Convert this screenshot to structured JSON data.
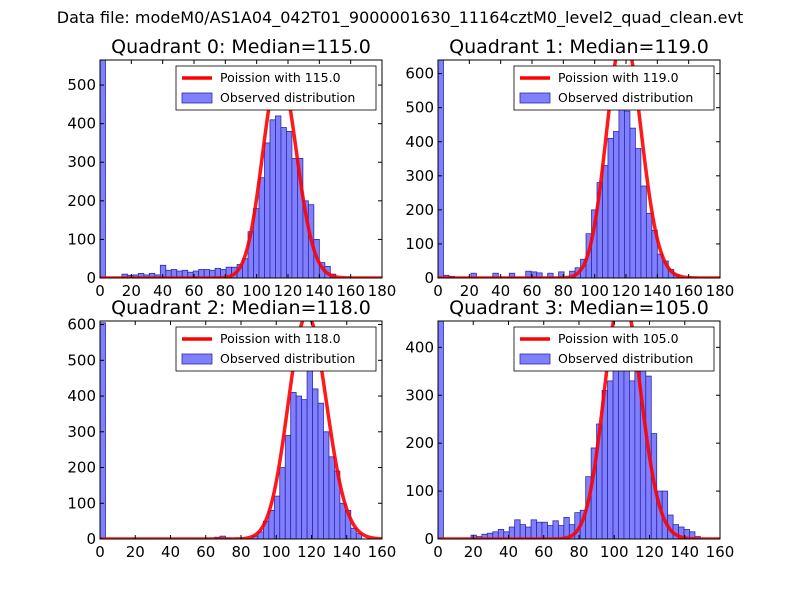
{
  "suptitle": "Data file: modeM0/AS1A04_042T01_9000001630_11164cztM0_level2_quad_clean.evt",
  "colors": {
    "bar_fill": "#8080ff",
    "bar_edge": "#2a2aa8",
    "curve": "#ff0000",
    "curve_hilite": "#f08c8c"
  },
  "chart_data": [
    {
      "type": "bar",
      "title": "Quadrant 0: Median=115.0",
      "median": 115.0,
      "legend": [
        "Poission with 115.0",
        "Observed distribution"
      ],
      "legend_position": "upper-right",
      "xlim": [
        0,
        180
      ],
      "ylim": [
        0,
        565
      ],
      "xticks": [
        0,
        20,
        40,
        60,
        80,
        100,
        120,
        140,
        160,
        180
      ],
      "yticks": [
        0,
        100,
        200,
        300,
        400,
        500
      ],
      "bins": [
        {
          "x0": 0,
          "x1": 3.5,
          "v": 565
        },
        {
          "x0": 14,
          "x1": 17.5,
          "v": 10
        },
        {
          "x0": 17.5,
          "x1": 21,
          "v": 7
        },
        {
          "x0": 21,
          "x1": 24.5,
          "v": 8
        },
        {
          "x0": 24.5,
          "x1": 28,
          "v": 12
        },
        {
          "x0": 28,
          "x1": 31.5,
          "v": 8
        },
        {
          "x0": 31.5,
          "x1": 35,
          "v": 12
        },
        {
          "x0": 35,
          "x1": 38.5,
          "v": 8
        },
        {
          "x0": 38.5,
          "x1": 42,
          "v": 33
        },
        {
          "x0": 42,
          "x1": 45.5,
          "v": 20
        },
        {
          "x0": 45.5,
          "x1": 49,
          "v": 22
        },
        {
          "x0": 49,
          "x1": 52.5,
          "v": 18
        },
        {
          "x0": 52.5,
          "x1": 56,
          "v": 20
        },
        {
          "x0": 56,
          "x1": 59.5,
          "v": 15
        },
        {
          "x0": 59.5,
          "x1": 63,
          "v": 18
        },
        {
          "x0": 63,
          "x1": 66.5,
          "v": 22
        },
        {
          "x0": 66.5,
          "x1": 70,
          "v": 22
        },
        {
          "x0": 70,
          "x1": 73.5,
          "v": 20
        },
        {
          "x0": 73.5,
          "x1": 77,
          "v": 25
        },
        {
          "x0": 77,
          "x1": 80.5,
          "v": 22
        },
        {
          "x0": 80.5,
          "x1": 84,
          "v": 28
        },
        {
          "x0": 84,
          "x1": 87.5,
          "v": 28
        },
        {
          "x0": 87.5,
          "x1": 91,
          "v": 35
        },
        {
          "x0": 91,
          "x1": 94.5,
          "v": 50
        },
        {
          "x0": 94.5,
          "x1": 98,
          "v": 120
        },
        {
          "x0": 98,
          "x1": 101.5,
          "v": 180
        },
        {
          "x0": 101.5,
          "x1": 105,
          "v": 260
        },
        {
          "x0": 105,
          "x1": 108.5,
          "v": 350
        },
        {
          "x0": 108.5,
          "x1": 112,
          "v": 410
        },
        {
          "x0": 112,
          "x1": 115.5,
          "v": 420
        },
        {
          "x0": 115.5,
          "x1": 119,
          "v": 390
        },
        {
          "x0": 119,
          "x1": 122.5,
          "v": 380
        },
        {
          "x0": 122.5,
          "x1": 126,
          "v": 310
        },
        {
          "x0": 126,
          "x1": 129.5,
          "v": 310
        },
        {
          "x0": 129.5,
          "x1": 133,
          "v": 200
        },
        {
          "x0": 133,
          "x1": 136.5,
          "v": 190
        },
        {
          "x0": 136.5,
          "x1": 140,
          "v": 100
        },
        {
          "x0": 140,
          "x1": 143.5,
          "v": 40
        },
        {
          "x0": 143.5,
          "x1": 147,
          "v": 30
        },
        {
          "x0": 147,
          "x1": 150.5,
          "v": 10
        }
      ]
    },
    {
      "type": "bar",
      "title": "Quadrant 1: Median=119.0",
      "median": 119.0,
      "legend": [
        "Poission with 119.0",
        "Observed distribution"
      ],
      "legend_position": "upper-right",
      "xlim": [
        0,
        180
      ],
      "ylim": [
        0,
        640
      ],
      "xticks": [
        0,
        20,
        40,
        60,
        80,
        100,
        120,
        140,
        160,
        180
      ],
      "yticks": [
        0,
        100,
        200,
        300,
        400,
        500,
        600
      ],
      "bins": [
        {
          "x0": 0,
          "x1": 3.5,
          "v": 640
        },
        {
          "x0": 3.5,
          "x1": 7,
          "v": 8
        },
        {
          "x0": 7,
          "x1": 10.5,
          "v": 5
        },
        {
          "x0": 21,
          "x1": 24.5,
          "v": 14
        },
        {
          "x0": 35,
          "x1": 38.5,
          "v": 14
        },
        {
          "x0": 45.5,
          "x1": 49,
          "v": 14
        },
        {
          "x0": 56,
          "x1": 59.5,
          "v": 20
        },
        {
          "x0": 59.5,
          "x1": 63,
          "v": 18
        },
        {
          "x0": 63,
          "x1": 66.5,
          "v": 15
        },
        {
          "x0": 70,
          "x1": 73.5,
          "v": 14
        },
        {
          "x0": 77,
          "x1": 80.5,
          "v": 18
        },
        {
          "x0": 84,
          "x1": 87.5,
          "v": 20
        },
        {
          "x0": 87.5,
          "x1": 91,
          "v": 30
        },
        {
          "x0": 91,
          "x1": 94.5,
          "v": 55
        },
        {
          "x0": 94.5,
          "x1": 98,
          "v": 130
        },
        {
          "x0": 98,
          "x1": 101.5,
          "v": 200
        },
        {
          "x0": 101.5,
          "x1": 105,
          "v": 280
        },
        {
          "x0": 105,
          "x1": 108.5,
          "v": 330
        },
        {
          "x0": 108.5,
          "x1": 112,
          "v": 410
        },
        {
          "x0": 112,
          "x1": 115.5,
          "v": 430
        },
        {
          "x0": 115.5,
          "x1": 119,
          "v": 560
        },
        {
          "x0": 119,
          "x1": 122.5,
          "v": 490
        },
        {
          "x0": 122.5,
          "x1": 126,
          "v": 440
        },
        {
          "x0": 126,
          "x1": 129.5,
          "v": 380
        },
        {
          "x0": 129.5,
          "x1": 133,
          "v": 270
        },
        {
          "x0": 133,
          "x1": 136.5,
          "v": 190
        },
        {
          "x0": 136.5,
          "x1": 140,
          "v": 140
        },
        {
          "x0": 140,
          "x1": 143.5,
          "v": 70
        },
        {
          "x0": 143.5,
          "x1": 147,
          "v": 50
        },
        {
          "x0": 147,
          "x1": 150.5,
          "v": 25
        },
        {
          "x0": 150.5,
          "x1": 154,
          "v": 10
        }
      ]
    },
    {
      "type": "bar",
      "title": "Quadrant 2: Median=118.0",
      "median": 118.0,
      "legend": [
        "Poission with 118.0",
        "Observed distribution"
      ],
      "legend_position": "upper-right",
      "xlim": [
        0,
        160
      ],
      "ylim": [
        0,
        610
      ],
      "xticks": [
        0,
        20,
        40,
        60,
        80,
        100,
        120,
        140,
        160
      ],
      "yticks": [
        0,
        100,
        200,
        300,
        400,
        500,
        600
      ],
      "bins": [
        {
          "x0": 0,
          "x1": 3.1,
          "v": 605
        },
        {
          "x0": 65,
          "x1": 68.1,
          "v": 5
        },
        {
          "x0": 68.1,
          "x1": 71.2,
          "v": 8
        },
        {
          "x0": 71.2,
          "x1": 74.3,
          "v": 3
        },
        {
          "x0": 86.5,
          "x1": 89.6,
          "v": 8
        },
        {
          "x0": 89.6,
          "x1": 92.7,
          "v": 20
        },
        {
          "x0": 92.7,
          "x1": 95.8,
          "v": 50
        },
        {
          "x0": 95.8,
          "x1": 98.9,
          "v": 80
        },
        {
          "x0": 98.9,
          "x1": 102,
          "v": 120
        },
        {
          "x0": 102,
          "x1": 105.1,
          "v": 200
        },
        {
          "x0": 105.1,
          "x1": 108.2,
          "v": 290
        },
        {
          "x0": 108.2,
          "x1": 111.3,
          "v": 410
        },
        {
          "x0": 111.3,
          "x1": 114.4,
          "v": 400
        },
        {
          "x0": 114.4,
          "x1": 117.5,
          "v": 390
        },
        {
          "x0": 117.5,
          "x1": 120.6,
          "v": 490
        },
        {
          "x0": 120.6,
          "x1": 123.7,
          "v": 420
        },
        {
          "x0": 123.7,
          "x1": 126.8,
          "v": 380
        },
        {
          "x0": 126.8,
          "x1": 129.9,
          "v": 300
        },
        {
          "x0": 129.9,
          "x1": 133,
          "v": 230
        },
        {
          "x0": 133,
          "x1": 136.1,
          "v": 190
        },
        {
          "x0": 136.1,
          "x1": 139.2,
          "v": 100
        },
        {
          "x0": 139.2,
          "x1": 142.3,
          "v": 80
        },
        {
          "x0": 142.3,
          "x1": 145.4,
          "v": 30
        },
        {
          "x0": 145.4,
          "x1": 148.5,
          "v": 15
        }
      ]
    },
    {
      "type": "bar",
      "title": "Quadrant 3: Median=105.0",
      "median": 105.0,
      "legend": [
        "Poission with 105.0",
        "Observed distribution"
      ],
      "legend_position": "upper-right",
      "xlim": [
        0,
        160
      ],
      "ylim": [
        0,
        455
      ],
      "xticks": [
        0,
        20,
        40,
        60,
        80,
        100,
        120,
        140,
        160
      ],
      "yticks": [
        0,
        100,
        200,
        300,
        400
      ],
      "bins": [
        {
          "x0": 0,
          "x1": 3.1,
          "v": 455
        },
        {
          "x0": 18.7,
          "x1": 21.8,
          "v": 8
        },
        {
          "x0": 21.8,
          "x1": 24.9,
          "v": 5
        },
        {
          "x0": 24.9,
          "x1": 28,
          "v": 10
        },
        {
          "x0": 28,
          "x1": 31.1,
          "v": 12
        },
        {
          "x0": 31.1,
          "x1": 34.2,
          "v": 15
        },
        {
          "x0": 34.2,
          "x1": 37.3,
          "v": 20
        },
        {
          "x0": 37.3,
          "x1": 40.4,
          "v": 15
        },
        {
          "x0": 40.4,
          "x1": 43.5,
          "v": 25
        },
        {
          "x0": 43.5,
          "x1": 46.6,
          "v": 40
        },
        {
          "x0": 46.6,
          "x1": 49.7,
          "v": 30
        },
        {
          "x0": 49.7,
          "x1": 52.8,
          "v": 25
        },
        {
          "x0": 52.8,
          "x1": 55.9,
          "v": 40
        },
        {
          "x0": 55.9,
          "x1": 59,
          "v": 35
        },
        {
          "x0": 59,
          "x1": 62.1,
          "v": 35
        },
        {
          "x0": 62.1,
          "x1": 65.2,
          "v": 28
        },
        {
          "x0": 65.2,
          "x1": 68.3,
          "v": 38
        },
        {
          "x0": 68.3,
          "x1": 71.4,
          "v": 28
        },
        {
          "x0": 71.4,
          "x1": 74.5,
          "v": 45
        },
        {
          "x0": 74.5,
          "x1": 77.6,
          "v": 30
        },
        {
          "x0": 77.6,
          "x1": 80.7,
          "v": 55
        },
        {
          "x0": 80.7,
          "x1": 83.8,
          "v": 60
        },
        {
          "x0": 83.8,
          "x1": 86.9,
          "v": 130
        },
        {
          "x0": 86.9,
          "x1": 90,
          "v": 190
        },
        {
          "x0": 90,
          "x1": 93.1,
          "v": 240
        },
        {
          "x0": 93.1,
          "x1": 96.2,
          "v": 310
        },
        {
          "x0": 96.2,
          "x1": 99.3,
          "v": 330
        },
        {
          "x0": 99.3,
          "x1": 102.4,
          "v": 370
        },
        {
          "x0": 102.4,
          "x1": 105.5,
          "v": 400
        },
        {
          "x0": 105.5,
          "x1": 108.6,
          "v": 360
        },
        {
          "x0": 108.6,
          "x1": 111.7,
          "v": 330
        },
        {
          "x0": 111.7,
          "x1": 114.8,
          "v": 350
        },
        {
          "x0": 114.8,
          "x1": 117.9,
          "v": 380
        },
        {
          "x0": 117.9,
          "x1": 121,
          "v": 340
        },
        {
          "x0": 121,
          "x1": 124.1,
          "v": 220
        },
        {
          "x0": 124.1,
          "x1": 127.2,
          "v": 100
        },
        {
          "x0": 127.2,
          "x1": 130.3,
          "v": 100
        },
        {
          "x0": 130.3,
          "x1": 133.4,
          "v": 50
        },
        {
          "x0": 133.4,
          "x1": 136.5,
          "v": 30
        },
        {
          "x0": 136.5,
          "x1": 139.6,
          "v": 25
        },
        {
          "x0": 139.6,
          "x1": 142.7,
          "v": 20
        },
        {
          "x0": 142.7,
          "x1": 145.8,
          "v": 15
        },
        {
          "x0": 145.8,
          "x1": 148.9,
          "v": 5
        }
      ]
    }
  ]
}
